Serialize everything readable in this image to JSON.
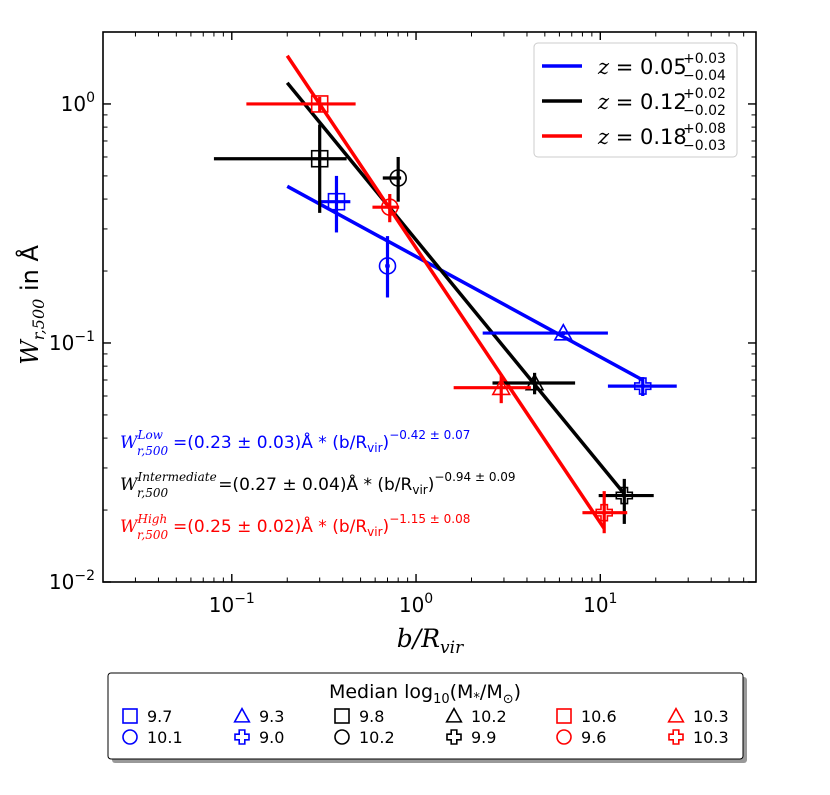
{
  "chart_data": {
    "type": "scatter",
    "xscale": "log",
    "yscale": "log",
    "xlim": [
      0.02,
      70
    ],
    "ylim": [
      0.01,
      2.0
    ],
    "xlabel": "b/R",
    "xlabel_sub": "vir",
    "ylabel": "W",
    "ylabel_sub": "r,500",
    "ylabel_suffix": " in Å",
    "x_ticks": [
      {
        "value": 0.1,
        "base": "10",
        "exp": "−1"
      },
      {
        "value": 1,
        "base": "10",
        "exp": "0"
      },
      {
        "value": 10,
        "base": "10",
        "exp": "1"
      }
    ],
    "y_ticks": [
      {
        "value": 0.01,
        "base": "10",
        "exp": "−2"
      },
      {
        "value": 0.1,
        "base": "10",
        "exp": "−1"
      },
      {
        "value": 1,
        "base": "10",
        "exp": "0"
      }
    ],
    "series": [
      {
        "name": "Low",
        "color": "#0000ff",
        "legend_z": "0.05",
        "legend_up": "+0.03",
        "legend_lo": "−0.04",
        "fit": {
          "amp": 0.23,
          "slope": -0.42,
          "x_range": [
            0.2,
            17
          ]
        },
        "points": [
          {
            "marker": "square",
            "x": 0.37,
            "y": 0.39,
            "xerr": [
              0.3,
              0.44
            ],
            "yerr": [
              0.29,
              0.5
            ]
          },
          {
            "marker": "circle",
            "x": 0.7,
            "y": 0.21,
            "xerr": [
              0.68,
              0.72
            ],
            "yerr": [
              0.155,
              0.28
            ]
          },
          {
            "marker": "triangle",
            "x": 6.3,
            "y": 0.11,
            "xerr": [
              2.3,
              11
            ],
            "yerr": [
              0.108,
              0.112
            ]
          },
          {
            "marker": "cross",
            "x": 17,
            "y": 0.066,
            "xerr": [
              11,
              26
            ],
            "yerr": [
              0.06,
              0.072
            ]
          }
        ]
      },
      {
        "name": "Intermediate",
        "color": "#000000",
        "legend_z": "0.12",
        "legend_up": "+0.02",
        "legend_lo": "−0.02",
        "fit": {
          "amp": 0.27,
          "slope": -0.94,
          "x_range": [
            0.2,
            13.5
          ]
        },
        "points": [
          {
            "marker": "square",
            "x": 0.3,
            "y": 0.59,
            "xerr": [
              0.08,
              0.42
            ],
            "yerr": [
              0.35,
              0.82
            ]
          },
          {
            "marker": "circle",
            "x": 0.8,
            "y": 0.49,
            "xerr": [
              0.66,
              0.83
            ],
            "yerr": [
              0.39,
              0.6
            ]
          },
          {
            "marker": "triangle",
            "x": 4.4,
            "y": 0.068,
            "xerr": [
              2.6,
              7.3
            ],
            "yerr": [
              0.061,
              0.075
            ]
          },
          {
            "marker": "cross",
            "x": 13.5,
            "y": 0.023,
            "xerr": [
              9.8,
              19.5
            ],
            "yerr": [
              0.0175,
              0.027
            ]
          }
        ]
      },
      {
        "name": "High",
        "color": "#ff0000",
        "legend_z": "0.18",
        "legend_up": "+0.08",
        "legend_lo": "−0.03",
        "fit": {
          "amp": 0.25,
          "slope": -1.15,
          "x_range": [
            0.2,
            10.5
          ]
        },
        "points": [
          {
            "marker": "square",
            "x": 0.3,
            "y": 1.0,
            "xerr": [
              0.12,
              0.47
            ],
            "yerr": [
              0.93,
              1.07
            ]
          },
          {
            "marker": "circle",
            "x": 0.72,
            "y": 0.37,
            "xerr": [
              0.58,
              0.81
            ],
            "yerr": [
              0.32,
              0.42
            ]
          },
          {
            "marker": "triangle",
            "x": 2.9,
            "y": 0.065,
            "xerr": [
              1.6,
              4.2
            ],
            "yerr": [
              0.056,
              0.074
            ]
          },
          {
            "marker": "cross",
            "x": 10.5,
            "y": 0.0195,
            "xerr": [
              8,
              14
            ],
            "yerr": [
              0.016,
              0.024
            ]
          }
        ]
      }
    ],
    "legend_placement": "top-right",
    "legend_prefix": "z",
    "equations": [
      {
        "color": "#0000ff",
        "sup": "Low",
        "body": "=(0.23 ± 0.03)Å * (b/R",
        "exp": "−0.42 ± 0.07"
      },
      {
        "color": "#000000",
        "sup": "Intermediate",
        "body": "=(0.27 ± 0.04)Å * (b/R",
        "exp": "−0.94 ± 0.09"
      },
      {
        "color": "#ff0000",
        "sup": "High",
        "body": "=(0.25 ± 0.02)Å * (b/R",
        "exp": "−1.15 ± 0.08"
      }
    ],
    "equation_lhs": "W",
    "equation_lhs_sub": "r,500",
    "equation_vir": "vir",
    "mass_legend": {
      "title_prefix": "Median log",
      "title_sub": "10",
      "title_suffix": "(M",
      "title_star": "*",
      "title_slash": "/M",
      "title_sun": "⊙",
      "title_close": ")",
      "entries": [
        {
          "marker": "square",
          "color": "#0000ff",
          "label": "9.7"
        },
        {
          "marker": "triangle",
          "color": "#0000ff",
          "label": "9.3"
        },
        {
          "marker": "square",
          "color": "#000000",
          "label": "9.8"
        },
        {
          "marker": "triangle",
          "color": "#000000",
          "label": "10.2"
        },
        {
          "marker": "square",
          "color": "#ff0000",
          "label": "10.6"
        },
        {
          "marker": "triangle",
          "color": "#ff0000",
          "label": "10.3"
        },
        {
          "marker": "circle",
          "color": "#0000ff",
          "label": "10.1"
        },
        {
          "marker": "cross",
          "color": "#0000ff",
          "label": "9.0"
        },
        {
          "marker": "circle",
          "color": "#000000",
          "label": "10.2"
        },
        {
          "marker": "cross",
          "color": "#000000",
          "label": "9.9"
        },
        {
          "marker": "circle",
          "color": "#ff0000",
          "label": "9.6"
        },
        {
          "marker": "cross",
          "color": "#ff0000",
          "label": "10.3"
        }
      ]
    }
  }
}
